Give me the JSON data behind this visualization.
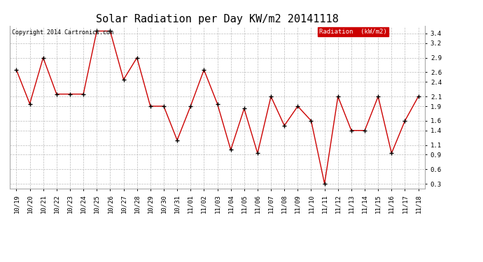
{
  "title": "Solar Radiation per Day KW/m2 20141118",
  "copyright_text": "Copyright 2014 Cartronics.com",
  "legend_label": "Radiation  (kW/m2)",
  "dates": [
    "10/19",
    "10/20",
    "10/21",
    "10/22",
    "10/23",
    "10/24",
    "10/25",
    "10/26",
    "10/27",
    "10/28",
    "10/29",
    "10/30",
    "10/31",
    "11/01",
    "11/02",
    "11/03",
    "11/04",
    "11/05",
    "11/06",
    "11/07",
    "11/08",
    "11/09",
    "11/10",
    "11/11",
    "11/12",
    "11/13",
    "11/14",
    "11/15",
    "11/16",
    "11/17",
    "11/18"
  ],
  "values": [
    2.65,
    1.95,
    2.9,
    2.15,
    2.15,
    2.15,
    3.45,
    3.45,
    2.45,
    2.9,
    1.9,
    1.9,
    1.2,
    1.9,
    2.65,
    1.95,
    1.0,
    1.85,
    0.93,
    2.1,
    1.5,
    1.9,
    1.6,
    0.3,
    2.1,
    1.4,
    1.4,
    2.1,
    0.93,
    1.6,
    2.1
  ],
  "ylim_min": 0.2,
  "ylim_max": 3.55,
  "yticks": [
    0.3,
    0.6,
    0.9,
    1.1,
    1.4,
    1.6,
    1.9,
    2.1,
    2.4,
    2.6,
    2.9,
    3.2,
    3.4
  ],
  "line_color": "#cc0000",
  "marker_color": "#000000",
  "background_color": "#ffffff",
  "grid_color": "#bbbbbb",
  "title_fontsize": 11,
  "tick_fontsize": 6.5,
  "copyright_fontsize": 6,
  "legend_fontsize": 6.5,
  "legend_bg_color": "#cc0000",
  "legend_text_color": "#ffffff"
}
